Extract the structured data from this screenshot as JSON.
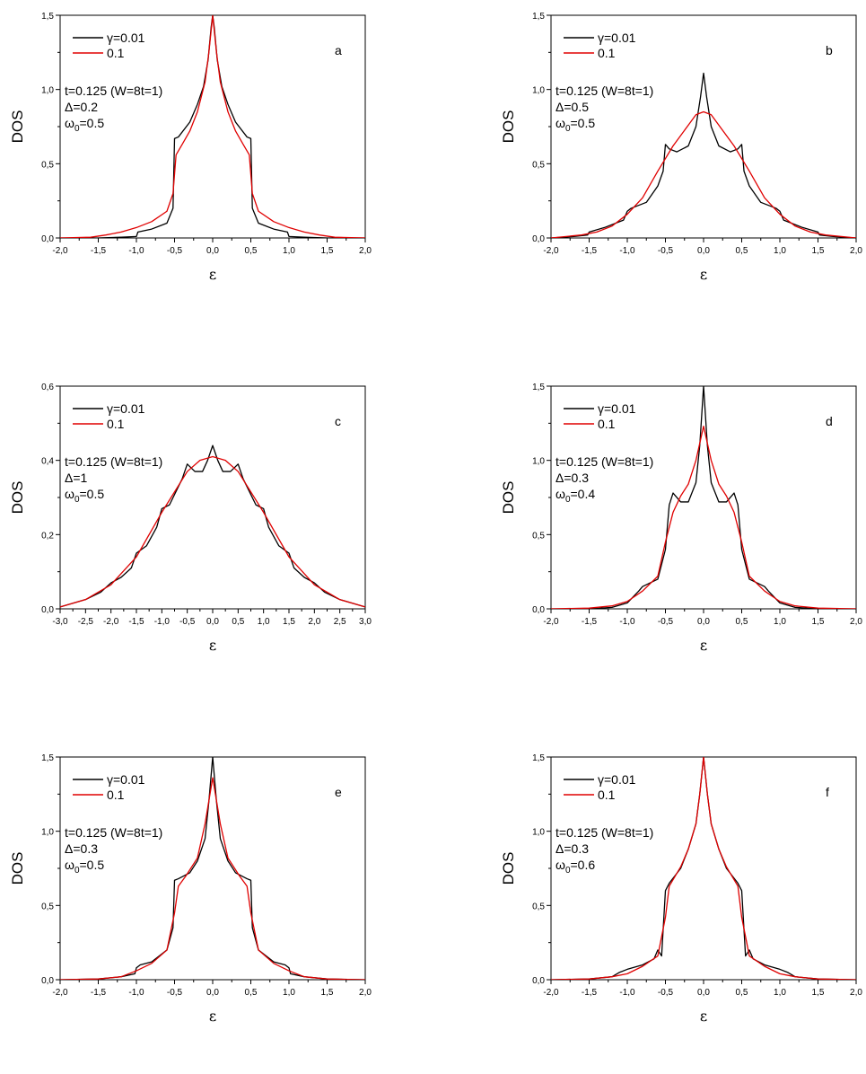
{
  "chart_data": [
    {
      "type": "line",
      "panel_label": "a",
      "xlabel": "ε",
      "ylabel": "DOS",
      "xlim": [
        -2.0,
        2.0
      ],
      "ylim": [
        0.0,
        1.5
      ],
      "xticks": [
        "-2,0",
        "-1,5",
        "-1,0",
        "-0,5",
        "0,0",
        "0,5",
        "1,0",
        "1,5",
        "2,0"
      ],
      "yticks": [
        "0,0",
        "0,5",
        "1,0",
        "1,5"
      ],
      "annotations": [
        "t=0.125 (W=8t=1)",
        "Δ=0.2",
        "ω0=0.5"
      ],
      "legend": {
        "position": "top-left"
      },
      "series": [
        {
          "name": "γ=0.01",
          "color": "#000000",
          "x": [
            -2.0,
            -1.5,
            -1.2,
            -1.0,
            -0.98,
            -0.8,
            -0.6,
            -0.52,
            -0.5,
            -0.45,
            -0.3,
            -0.2,
            -0.12,
            -0.06,
            -0.02,
            0.0,
            0.02,
            0.06,
            0.12,
            0.2,
            0.3,
            0.45,
            0.5,
            0.52,
            0.6,
            0.8,
            0.98,
            1.0,
            1.2,
            1.5,
            2.0
          ],
          "y": [
            0.0,
            0.0,
            0.005,
            0.01,
            0.04,
            0.06,
            0.1,
            0.2,
            0.67,
            0.68,
            0.78,
            0.9,
            1.02,
            1.2,
            1.42,
            1.5,
            1.42,
            1.2,
            1.02,
            0.9,
            0.78,
            0.68,
            0.67,
            0.2,
            0.1,
            0.06,
            0.04,
            0.01,
            0.005,
            0.0,
            0.0
          ]
        },
        {
          "name": "0.1",
          "color": "#e00000",
          "x": [
            -2.0,
            -1.6,
            -1.4,
            -1.2,
            -1.0,
            -0.8,
            -0.6,
            -0.52,
            -0.48,
            -0.4,
            -0.3,
            -0.2,
            -0.1,
            -0.05,
            0.0,
            0.05,
            0.1,
            0.2,
            0.3,
            0.4,
            0.48,
            0.52,
            0.6,
            0.8,
            1.0,
            1.2,
            1.4,
            1.6,
            2.0
          ],
          "y": [
            0.0,
            0.005,
            0.02,
            0.04,
            0.07,
            0.11,
            0.18,
            0.3,
            0.56,
            0.63,
            0.72,
            0.85,
            1.05,
            1.25,
            1.5,
            1.25,
            1.05,
            0.85,
            0.72,
            0.63,
            0.56,
            0.3,
            0.18,
            0.11,
            0.07,
            0.04,
            0.02,
            0.005,
            0.0
          ]
        }
      ]
    },
    {
      "type": "line",
      "panel_label": "b",
      "xlabel": "ε",
      "ylabel": "DOS",
      "xlim": [
        -2.0,
        2.0
      ],
      "ylim": [
        0.0,
        1.5
      ],
      "xticks": [
        "-2,0",
        "-1,5",
        "-1,0",
        "-0,5",
        "0,0",
        "0,5",
        "1,0",
        "1,5",
        "2,0"
      ],
      "yticks": [
        "0,0",
        "0,5",
        "1,0",
        "1,5"
      ],
      "annotations": [
        "t=0.125 (W=8t=1)",
        "Δ=0.5",
        "ω0=0.5"
      ],
      "legend": {
        "position": "top-left"
      },
      "series": [
        {
          "name": "γ=0.01",
          "color": "#000000",
          "x": [
            -2.0,
            -1.7,
            -1.52,
            -1.5,
            -1.3,
            -1.05,
            -1.0,
            -0.95,
            -0.75,
            -0.6,
            -0.53,
            -0.5,
            -0.45,
            -0.35,
            -0.2,
            -0.1,
            -0.04,
            0.0,
            0.04,
            0.1,
            0.2,
            0.35,
            0.45,
            0.5,
            0.53,
            0.6,
            0.75,
            0.95,
            1.0,
            1.05,
            1.3,
            1.5,
            1.52,
            1.7,
            2.0
          ],
          "y": [
            0.0,
            0.01,
            0.02,
            0.04,
            0.07,
            0.12,
            0.18,
            0.2,
            0.24,
            0.35,
            0.45,
            0.63,
            0.6,
            0.58,
            0.62,
            0.75,
            0.95,
            1.11,
            0.95,
            0.75,
            0.62,
            0.58,
            0.6,
            0.63,
            0.45,
            0.35,
            0.24,
            0.2,
            0.18,
            0.12,
            0.07,
            0.04,
            0.02,
            0.01,
            0.0
          ]
        },
        {
          "name": "0.1",
          "color": "#e00000",
          "x": [
            -2.0,
            -1.6,
            -1.4,
            -1.2,
            -1.0,
            -0.8,
            -0.6,
            -0.4,
            -0.2,
            -0.1,
            0.0,
            0.1,
            0.2,
            0.4,
            0.6,
            0.8,
            1.0,
            1.2,
            1.4,
            1.6,
            2.0
          ],
          "y": [
            0.0,
            0.02,
            0.04,
            0.08,
            0.16,
            0.27,
            0.45,
            0.62,
            0.76,
            0.83,
            0.85,
            0.83,
            0.76,
            0.62,
            0.45,
            0.27,
            0.16,
            0.08,
            0.04,
            0.02,
            0.0
          ]
        }
      ]
    },
    {
      "type": "line",
      "panel_label": "c",
      "xlabel": "ε",
      "ylabel": "DOS",
      "xlim": [
        -3.0,
        3.0
      ],
      "ylim": [
        0.0,
        0.6
      ],
      "xticks": [
        "-3,0",
        "-2,5",
        "-2,0",
        "-1,5",
        "-1,0",
        "-0,5",
        "0,0",
        "0,5",
        "1,0",
        "1,5",
        "2,0",
        "2,5",
        "3,0"
      ],
      "yticks": [
        "0,0",
        "0,2",
        "0,4",
        "0,6"
      ],
      "annotations": [
        "t=0.125 (W=8t=1)",
        "Δ=1",
        "ω0=0.5"
      ],
      "legend": {
        "position": "top-left"
      },
      "series": [
        {
          "name": "γ=0.01",
          "color": "#000000",
          "x": [
            -3.0,
            -2.5,
            -2.2,
            -2.0,
            -1.8,
            -1.6,
            -1.5,
            -1.3,
            -1.1,
            -1.0,
            -0.85,
            -0.6,
            -0.5,
            -0.35,
            -0.2,
            -0.1,
            0.0,
            0.1,
            0.2,
            0.35,
            0.5,
            0.6,
            0.85,
            1.0,
            1.1,
            1.3,
            1.5,
            1.6,
            1.8,
            2.0,
            2.2,
            2.5,
            3.0
          ],
          "y": [
            0.005,
            0.025,
            0.045,
            0.07,
            0.085,
            0.11,
            0.15,
            0.17,
            0.22,
            0.27,
            0.28,
            0.35,
            0.39,
            0.37,
            0.37,
            0.4,
            0.44,
            0.4,
            0.37,
            0.37,
            0.39,
            0.35,
            0.28,
            0.27,
            0.22,
            0.17,
            0.15,
            0.11,
            0.085,
            0.07,
            0.045,
            0.025,
            0.005
          ]
        },
        {
          "name": "0.1",
          "color": "#e00000",
          "x": [
            -3.0,
            -2.5,
            -2.0,
            -1.5,
            -1.0,
            -0.5,
            -0.25,
            0.0,
            0.25,
            0.5,
            1.0,
            1.5,
            2.0,
            2.5,
            3.0
          ],
          "y": [
            0.005,
            0.025,
            0.065,
            0.14,
            0.26,
            0.37,
            0.4,
            0.41,
            0.4,
            0.37,
            0.26,
            0.14,
            0.065,
            0.025,
            0.005
          ]
        }
      ]
    },
    {
      "type": "line",
      "panel_label": "d",
      "xlabel": "ε",
      "ylabel": "DOS",
      "xlim": [
        -2.0,
        2.0
      ],
      "ylim": [
        0.0,
        1.5
      ],
      "xticks": [
        "-2,0",
        "-1,5",
        "-1,0",
        "-0,5",
        "0,0",
        "0,5",
        "1,0",
        "1,5",
        "2,0"
      ],
      "yticks": [
        "0,0",
        "0,5",
        "1,0",
        "1,5"
      ],
      "annotations": [
        "t=0.125 (W=8t=1)",
        "Δ=0.3",
        "ω0=0.4"
      ],
      "legend": {
        "position": "top-left"
      },
      "series": [
        {
          "name": "γ=0.01",
          "color": "#000000",
          "x": [
            -2.0,
            -1.5,
            -1.2,
            -1.0,
            -0.85,
            -0.8,
            -0.6,
            -0.5,
            -0.45,
            -0.4,
            -0.3,
            -0.2,
            -0.1,
            -0.05,
            0.0,
            0.05,
            0.1,
            0.2,
            0.3,
            0.4,
            0.45,
            0.5,
            0.6,
            0.8,
            0.85,
            1.0,
            1.2,
            1.5,
            2.0
          ],
          "y": [
            0.0,
            0.0,
            0.01,
            0.04,
            0.12,
            0.15,
            0.2,
            0.4,
            0.7,
            0.78,
            0.72,
            0.72,
            0.85,
            1.1,
            1.5,
            1.1,
            0.85,
            0.72,
            0.72,
            0.78,
            0.7,
            0.4,
            0.2,
            0.15,
            0.12,
            0.04,
            0.01,
            0.0,
            0.0
          ]
        },
        {
          "name": "0.1",
          "color": "#e00000",
          "x": [
            -2.0,
            -1.5,
            -1.2,
            -1.0,
            -0.8,
            -0.6,
            -0.5,
            -0.4,
            -0.3,
            -0.2,
            -0.1,
            0.0,
            0.1,
            0.2,
            0.3,
            0.4,
            0.5,
            0.6,
            0.8,
            1.0,
            1.2,
            1.5,
            2.0
          ],
          "y": [
            0.0,
            0.005,
            0.02,
            0.05,
            0.12,
            0.22,
            0.45,
            0.65,
            0.76,
            0.84,
            1.0,
            1.23,
            1.0,
            0.84,
            0.76,
            0.65,
            0.45,
            0.22,
            0.12,
            0.05,
            0.02,
            0.005,
            0.0
          ]
        }
      ]
    },
    {
      "type": "line",
      "panel_label": "e",
      "xlabel": "ε",
      "ylabel": "DOS",
      "xlim": [
        -2.0,
        2.0
      ],
      "ylim": [
        0.0,
        1.5
      ],
      "xticks": [
        "-2,0",
        "-1,5",
        "-1,0",
        "-0,5",
        "0,0",
        "0,5",
        "1,0",
        "1,5",
        "2,0"
      ],
      "yticks": [
        "0,0",
        "0,5",
        "1,0",
        "1,5"
      ],
      "annotations": [
        "t=0.125 (W=8t=1)",
        "Δ=0.3",
        "ω0=0.5"
      ],
      "legend": {
        "position": "top-left"
      },
      "series": [
        {
          "name": "γ=0.01",
          "color": "#000000",
          "x": [
            -2.0,
            -1.5,
            -1.2,
            -1.02,
            -1.0,
            -0.95,
            -0.8,
            -0.6,
            -0.52,
            -0.5,
            -0.45,
            -0.3,
            -0.2,
            -0.1,
            -0.05,
            0.0,
            0.05,
            0.1,
            0.2,
            0.3,
            0.45,
            0.5,
            0.52,
            0.6,
            0.8,
            0.95,
            1.0,
            1.02,
            1.2,
            1.5,
            2.0
          ],
          "y": [
            0.0,
            0.005,
            0.02,
            0.04,
            0.08,
            0.1,
            0.12,
            0.2,
            0.35,
            0.67,
            0.68,
            0.72,
            0.8,
            0.95,
            1.2,
            1.5,
            1.2,
            0.95,
            0.8,
            0.72,
            0.68,
            0.67,
            0.35,
            0.2,
            0.12,
            0.1,
            0.08,
            0.04,
            0.02,
            0.005,
            0.0
          ]
        },
        {
          "name": "0.1",
          "color": "#e00000",
          "x": [
            -2.0,
            -1.5,
            -1.2,
            -1.0,
            -0.8,
            -0.6,
            -0.5,
            -0.45,
            -0.35,
            -0.2,
            -0.1,
            0.0,
            0.1,
            0.2,
            0.35,
            0.45,
            0.5,
            0.6,
            0.8,
            1.0,
            1.2,
            1.5,
            2.0
          ],
          "y": [
            0.0,
            0.005,
            0.02,
            0.06,
            0.11,
            0.2,
            0.45,
            0.63,
            0.7,
            0.82,
            1.05,
            1.36,
            1.05,
            0.82,
            0.7,
            0.63,
            0.45,
            0.2,
            0.11,
            0.06,
            0.02,
            0.005,
            0.0
          ]
        }
      ]
    },
    {
      "type": "line",
      "panel_label": "f",
      "xlabel": "ε",
      "ylabel": "DOS",
      "xlim": [
        -2.0,
        2.0
      ],
      "ylim": [
        0.0,
        1.5
      ],
      "xticks": [
        "-2,0",
        "-1,5",
        "-1,0",
        "-0,5",
        "0,0",
        "0,5",
        "1,0",
        "1,5",
        "2,0"
      ],
      "yticks": [
        "0,0",
        "0,5",
        "1,0",
        "1,5"
      ],
      "annotations": [
        "t=0.125 (W=8t=1)",
        "Δ=0.3",
        "ω0=0.6"
      ],
      "legend": {
        "position": "top-left"
      },
      "series": [
        {
          "name": "γ=0.01",
          "color": "#000000",
          "x": [
            -2.0,
            -1.5,
            -1.2,
            -1.1,
            -1.0,
            -0.8,
            -0.65,
            -0.6,
            -0.55,
            -0.5,
            -0.45,
            -0.3,
            -0.2,
            -0.1,
            -0.05,
            0.0,
            0.05,
            0.1,
            0.2,
            0.3,
            0.45,
            0.5,
            0.55,
            0.6,
            0.65,
            0.8,
            1.0,
            1.1,
            1.2,
            1.5,
            2.0
          ],
          "y": [
            0.0,
            0.005,
            0.02,
            0.05,
            0.07,
            0.1,
            0.14,
            0.2,
            0.16,
            0.6,
            0.65,
            0.75,
            0.88,
            1.05,
            1.25,
            1.5,
            1.25,
            1.05,
            0.88,
            0.75,
            0.65,
            0.6,
            0.16,
            0.2,
            0.14,
            0.1,
            0.07,
            0.05,
            0.02,
            0.005,
            0.0
          ]
        },
        {
          "name": "0.1",
          "color": "#e00000",
          "x": [
            -2.0,
            -1.5,
            -1.2,
            -1.0,
            -0.8,
            -0.6,
            -0.5,
            -0.45,
            -0.3,
            -0.2,
            -0.1,
            -0.05,
            0.0,
            0.05,
            0.1,
            0.2,
            0.3,
            0.45,
            0.5,
            0.6,
            0.8,
            1.0,
            1.2,
            1.5,
            2.0
          ],
          "y": [
            0.0,
            0.005,
            0.02,
            0.04,
            0.09,
            0.16,
            0.42,
            0.63,
            0.76,
            0.88,
            1.05,
            1.25,
            1.5,
            1.25,
            1.05,
            0.88,
            0.76,
            0.63,
            0.42,
            0.16,
            0.09,
            0.04,
            0.02,
            0.005,
            0.0
          ]
        }
      ]
    }
  ]
}
